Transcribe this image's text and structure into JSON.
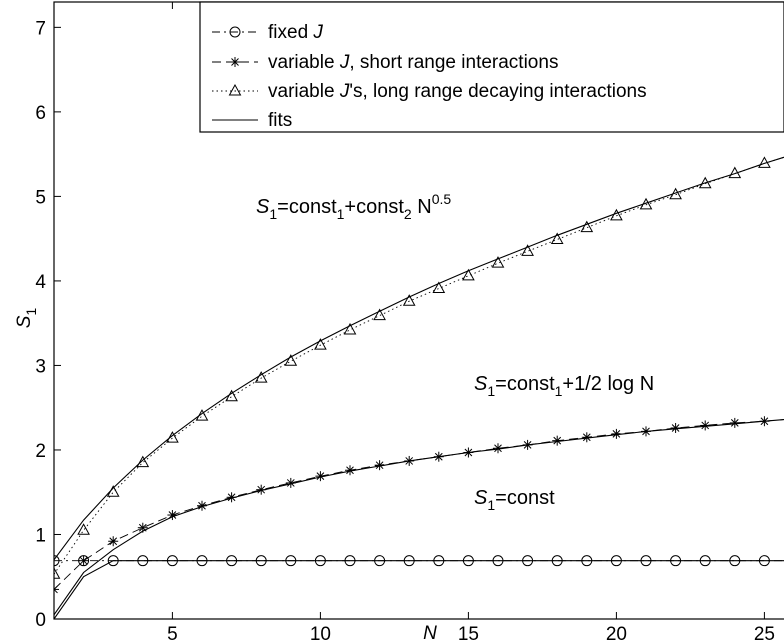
{
  "chart_data": {
    "type": "line",
    "xlabel": "N",
    "ylabel": "S",
    "ylabel_sub": "1",
    "xlim": [
      1,
      26
    ],
    "ylim": [
      0,
      7.3
    ],
    "xticks": [
      5,
      10,
      15,
      20,
      25
    ],
    "yticks": [
      0,
      1,
      2,
      3,
      4,
      5,
      6,
      7
    ],
    "grid": false,
    "legend_position": "top-right",
    "legend": [
      {
        "prefix": "fixed ",
        "italic": "J",
        "suffix": "",
        "marker": "circle",
        "dash": "dashdot"
      },
      {
        "prefix": "variable ",
        "italic": "J",
        "suffix": ", short range interactions",
        "marker": "star",
        "dash": "dashed"
      },
      {
        "prefix": "variable ",
        "italic": "J",
        "suffix": "'s, long range decaying interactions",
        "marker": "triangle",
        "dash": "dotted"
      },
      {
        "prefix": "",
        "italic": "",
        "suffix": "fits",
        "marker": "none",
        "dash": "solid"
      }
    ],
    "annotations": {
      "sqrt": {
        "s": "S",
        "sub1": "1",
        "mid": "=const",
        "sub2": "1",
        "mid2": "+const",
        "sub3": "2",
        "tail": " N",
        "sup": "0.5"
      },
      "log": {
        "s": "S",
        "sub1": "1",
        "tail": "=const",
        "sub2": "1",
        "tail2": "+1/2 log N"
      },
      "const": {
        "s": "S",
        "sub1": "1",
        "tail": "=const"
      }
    },
    "x": [
      1,
      2,
      3,
      4,
      5,
      6,
      7,
      8,
      9,
      10,
      11,
      12,
      13,
      14,
      15,
      16,
      17,
      18,
      19,
      20,
      21,
      22,
      23,
      24,
      25,
      26
    ],
    "series": [
      {
        "marker": "circle",
        "values": [
          0.69,
          0.69,
          0.69,
          0.69,
          0.69,
          0.69,
          0.69,
          0.69,
          0.69,
          0.69,
          0.69,
          0.69,
          0.69,
          0.69,
          0.69,
          0.69,
          0.69,
          0.69,
          0.69,
          0.69,
          0.69,
          0.69,
          0.69,
          0.69,
          0.69,
          0.69
        ]
      },
      {
        "marker": "star",
        "values": [
          0.35,
          0.69,
          0.92,
          1.08,
          1.23,
          1.34,
          1.44,
          1.53,
          1.61,
          1.69,
          1.76,
          1.82,
          1.87,
          1.92,
          1.97,
          2.02,
          2.06,
          2.11,
          2.15,
          2.19,
          2.22,
          2.26,
          2.29,
          2.32,
          2.34,
          2.37
        ]
      },
      {
        "marker": "triangle",
        "values": [
          0.53,
          1.05,
          1.5,
          1.85,
          2.14,
          2.4,
          2.63,
          2.85,
          3.05,
          3.24,
          3.42,
          3.59,
          3.76,
          3.91,
          4.06,
          4.21,
          4.35,
          4.49,
          4.63,
          4.77,
          4.9,
          5.02,
          5.15,
          5.27,
          5.39,
          5.5
        ]
      }
    ],
    "fits": [
      {
        "kind": "const",
        "values": [
          0.0,
          0.5,
          0.69,
          0.69,
          0.69,
          0.69,
          0.69,
          0.69,
          0.69,
          0.69,
          0.69,
          0.69,
          0.69,
          0.69,
          0.69,
          0.69,
          0.69,
          0.69,
          0.69,
          0.69,
          0.69,
          0.69,
          0.69,
          0.69,
          0.69,
          0.69
        ]
      },
      {
        "kind": "log",
        "values": [
          0.05,
          0.55,
          0.82,
          1.04,
          1.21,
          1.33,
          1.43,
          1.52,
          1.6,
          1.68,
          1.75,
          1.81,
          1.87,
          1.92,
          1.97,
          2.01,
          2.06,
          2.1,
          2.14,
          2.18,
          2.22,
          2.25,
          2.28,
          2.31,
          2.34,
          2.37
        ]
      },
      {
        "kind": "sqrt",
        "values": [
          0.7,
          1.17,
          1.55,
          1.88,
          2.17,
          2.43,
          2.67,
          2.89,
          3.1,
          3.29,
          3.47,
          3.64,
          3.81,
          3.97,
          4.12,
          4.26,
          4.4,
          4.54,
          4.67,
          4.8,
          4.92,
          5.04,
          5.16,
          5.27,
          5.39,
          5.5
        ]
      }
    ]
  }
}
